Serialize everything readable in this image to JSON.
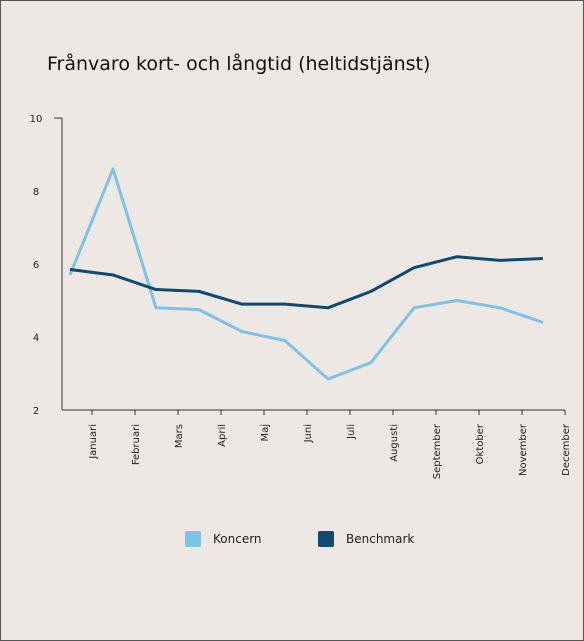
{
  "chart_data": {
    "type": "line",
    "title": "Frånvaro kort- och långtid (heltidstjänst)",
    "categories": [
      "Januari",
      "Februari",
      "Mars",
      "April",
      "Maj",
      "Juni",
      "Juli",
      "Augusti",
      "September",
      "Oktober",
      "November",
      "December"
    ],
    "series": [
      {
        "name": "Koncern",
        "color": "#7dc3e8",
        "values": [
          5.7,
          8.6,
          4.8,
          4.75,
          4.15,
          3.9,
          2.85,
          3.3,
          4.8,
          5.0,
          4.8,
          4.4
        ]
      },
      {
        "name": "Benchmark",
        "color": "#0e4a72",
        "values": [
          5.85,
          5.7,
          5.3,
          5.25,
          4.9,
          4.9,
          4.8,
          5.25,
          5.9,
          6.2,
          6.1,
          6.15
        ]
      }
    ],
    "ylim": [
      2,
      10
    ],
    "yticks": [
      2,
      4,
      6,
      8,
      10
    ],
    "grid": false
  }
}
